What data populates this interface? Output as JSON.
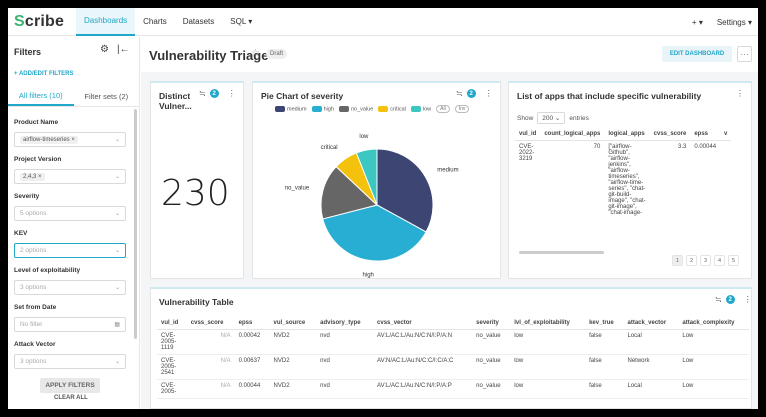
{
  "app": {
    "logo_s": "S",
    "logo_rest": "cribe"
  },
  "nav": {
    "items": [
      "Dashboards",
      "Charts",
      "Datasets",
      "SQL ▾"
    ],
    "plus": "+ ▾",
    "settings": "Settings ▾"
  },
  "filters": {
    "title": "Filters",
    "add": "+ ADD/EDIT FILTERS",
    "tabs": [
      "All filters (10)",
      "Filter sets (2)"
    ],
    "items": [
      {
        "label": "Product Name",
        "value": "airflow-timeseries",
        "type": "tag"
      },
      {
        "label": "Project Version",
        "value": "2,4,3",
        "type": "tag"
      },
      {
        "label": "Severity",
        "value": "5 options",
        "type": "select"
      },
      {
        "label": "KEV",
        "value": "2 options",
        "type": "select"
      },
      {
        "label": "Level of exploitability",
        "value": "3 options",
        "type": "select"
      },
      {
        "label": "Set from Date",
        "value": "No filter",
        "type": "date"
      },
      {
        "label": "Attack Vector",
        "value": "3 options",
        "type": "select"
      }
    ],
    "apply": "APPLY FILTERS",
    "clear": "CLEAR ALL"
  },
  "dashboard": {
    "title": "Vulnerability Triage",
    "status": "Draft",
    "edit": "EDIT DASHBOARD",
    "more": "···"
  },
  "cards": {
    "distinct": {
      "title_line1": "Distinct",
      "title_line2": "Vulner...",
      "value": "230",
      "badge": "2"
    },
    "pie": {
      "title": "Pie Chart of severity",
      "badge": "2",
      "pill_all": "All",
      "pill_inv": "Inv"
    },
    "apps": {
      "title": "List of apps that include specific vulnerability",
      "show": "Show",
      "entries_value": "200",
      "entries": "entries",
      "columns": [
        "vul_id",
        "count_logical_apps",
        "logical_apps",
        "cvss_score",
        "epss",
        "v"
      ],
      "row": {
        "vul_id": [
          "CVE-",
          "2022-",
          "3219"
        ],
        "count": "70",
        "apps": [
          "[\"airflow-",
          "Github\",",
          "\"airflow-",
          "jenkins\",",
          "\"airflow-",
          "timeseries\",",
          "\"airflow-time-",
          "series\", \"chat-",
          "git-build-",
          "image\", \"chat-",
          "git-image\",",
          "\"chat-image-"
        ],
        "cvss": "3.3",
        "epss": "0.00044"
      },
      "pages": [
        "1",
        "2",
        "3",
        "4",
        "5"
      ]
    },
    "vtable": {
      "title": "Vulnerability Table",
      "badge": "2",
      "columns": [
        "vul_id",
        "cvss_score",
        "epss",
        "vul_source",
        "advisory_type",
        "cvss_vector",
        "severity",
        "lvl_of_exploitability",
        "kev_true",
        "attack_vector",
        "attack_complexity"
      ],
      "rows": [
        {
          "id": [
            "CVE-",
            "2005-",
            "1119"
          ],
          "cvss": "N/A",
          "epss": "0.00042",
          "src": "NVD2",
          "adv": "nvd",
          "vec": "AV:L/AC:L/Au:N/C:N/I:P/A:N",
          "sev": "no_value",
          "lvl": "low",
          "kev": "false",
          "av": "Local",
          "ac": "Low"
        },
        {
          "id": [
            "CVE-",
            "2005-",
            "2541"
          ],
          "cvss": "N/A",
          "epss": "0.00637",
          "src": "NVD2",
          "adv": "nvd",
          "vec": "AV:N/AC:L/Au:N/C:C/I:C/A:C",
          "sev": "no_value",
          "lvl": "low",
          "kev": "false",
          "av": "Network",
          "ac": "Low"
        },
        {
          "id": [
            "CVE-",
            "2005-"
          ],
          "cvss": "N/A",
          "epss": "0.00044",
          "src": "NVD2",
          "adv": "nvd",
          "vec": "AV:L/AC:L/Au:N/C:N/I:P/A:P",
          "sev": "no_value",
          "lvl": "low",
          "kev": "false",
          "av": "Local",
          "ac": "Low"
        }
      ]
    }
  },
  "chart_data": {
    "type": "pie",
    "title": "Pie Chart of severity",
    "categories": [
      "medium",
      "high",
      "no_value",
      "critical",
      "low"
    ],
    "values": [
      33,
      38,
      16,
      7,
      6
    ],
    "colors": [
      "#3d4573",
      "#29aed3",
      "#666666",
      "#f4c20d",
      "#3cc7c0"
    ],
    "legend": "top"
  }
}
